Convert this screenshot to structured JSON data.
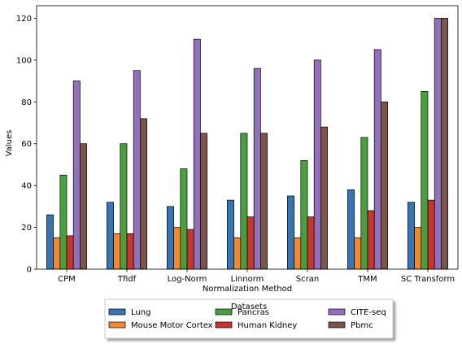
{
  "chart_data": {
    "type": "bar",
    "categories": [
      "CPM",
      "Tfidf",
      "Log-Norm",
      "Linnorm",
      "Scran",
      "TMM",
      "SC Transform"
    ],
    "xlabel": "Normalization Method",
    "ylabel": "Values",
    "ylim": [
      0,
      126
    ],
    "yticks": [
      0,
      20,
      40,
      60,
      80,
      100,
      120
    ],
    "grid": false,
    "legend": {
      "title": "Datasets",
      "placement": "bottom-center",
      "columns": 3
    },
    "series": [
      {
        "name": "Lung",
        "color": "#3a75b0",
        "values": [
          26,
          32,
          30,
          33,
          35,
          38,
          32
        ]
      },
      {
        "name": "Mouse Motor Cortex",
        "color": "#ee8a35",
        "values": [
          15,
          17,
          20,
          15,
          15,
          15,
          20
        ]
      },
      {
        "name": "Pancras",
        "color": "#4b9e3f",
        "values": [
          45,
          60,
          48,
          65,
          52,
          63,
          85
        ]
      },
      {
        "name": "Human Kidney",
        "color": "#c7352e",
        "values": [
          16,
          17,
          19,
          25,
          25,
          28,
          33
        ]
      },
      {
        "name": "CITE-seq",
        "color": "#9370bd",
        "values": [
          90,
          95,
          110,
          96,
          100,
          105,
          120
        ]
      },
      {
        "name": "Pbmc",
        "color": "#7c5449",
        "values": [
          60,
          72,
          65,
          65,
          68,
          80,
          120
        ]
      }
    ]
  }
}
